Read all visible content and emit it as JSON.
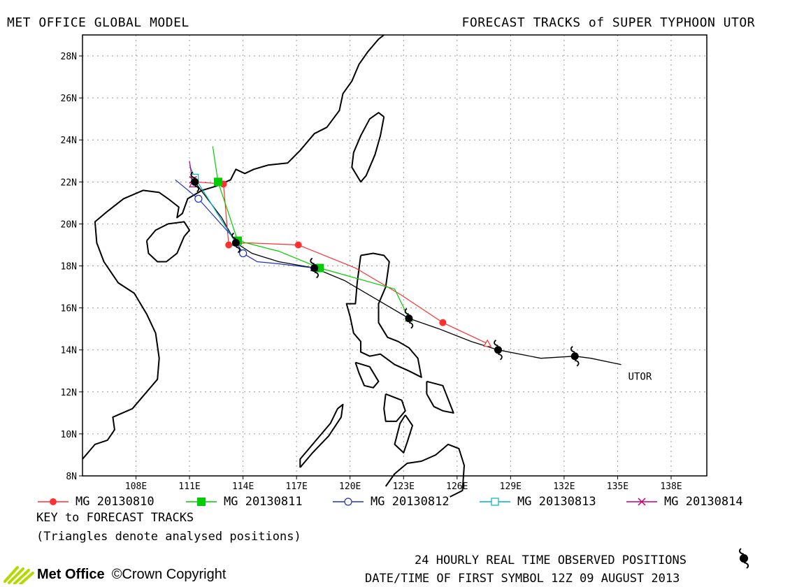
{
  "header": {
    "left_title": "MET OFFICE GLOBAL MODEL",
    "right_title": "FORECAST TRACKS of SUPER TYPHOON UTOR"
  },
  "map": {
    "lat_range": [
      8,
      29
    ],
    "lon_range": [
      105,
      140
    ],
    "lat_ticks": [
      "8N",
      "10N",
      "12N",
      "14N",
      "16N",
      "18N",
      "20N",
      "22N",
      "24N",
      "26N",
      "28N"
    ],
    "lon_ticks": [
      "108E",
      "111E",
      "114E",
      "117E",
      "120E",
      "123E",
      "126E",
      "129E",
      "132E",
      "135E",
      "138E"
    ],
    "storm_label": "UTOR",
    "colors": {
      "coast": "#000000",
      "grid": "#999999",
      "observed": "#000000"
    }
  },
  "observed_track": {
    "line": [
      [
        135.2,
        13.3
      ],
      [
        133.5,
        13.6
      ],
      [
        132.6,
        13.7
      ],
      [
        130.7,
        13.6
      ],
      [
        128.3,
        14.0
      ],
      [
        126.8,
        14.4
      ],
      [
        125.0,
        15.0
      ],
      [
        123.3,
        15.5
      ],
      [
        121.5,
        16.4
      ],
      [
        119.7,
        17.3
      ],
      [
        118.0,
        17.9
      ],
      [
        116.0,
        18.2
      ],
      [
        114.5,
        18.6
      ],
      [
        113.6,
        19.1
      ],
      [
        112.8,
        20.3
      ],
      [
        112.0,
        21.2
      ],
      [
        111.3,
        22.0
      ]
    ],
    "symbols": [
      [
        132.6,
        13.7
      ],
      [
        128.3,
        14.0
      ],
      [
        123.3,
        15.5
      ],
      [
        118.0,
        17.9
      ],
      [
        113.6,
        19.1
      ],
      [
        111.3,
        22.0
      ]
    ]
  },
  "forecast_tracks": [
    {
      "name": "MG 20130810",
      "color": "#ff3030",
      "marker": "circle-filled",
      "points": [
        [
          127.7,
          14.3
        ],
        [
          125.2,
          15.3
        ],
        [
          122.9,
          16.6
        ],
        [
          120.3,
          17.9
        ],
        [
          117.1,
          19.0
        ],
        [
          114.2,
          19.1
        ],
        [
          113.2,
          19.0
        ],
        [
          112.9,
          21.9
        ],
        [
          111.3,
          22.0
        ]
      ],
      "markers": [
        [
          125.2,
          15.3
        ],
        [
          117.1,
          19.0
        ],
        [
          113.2,
          19.0
        ],
        [
          112.9,
          21.9
        ]
      ],
      "analysed": [
        127.7,
        14.3
      ]
    },
    {
      "name": "MG 20130811",
      "color": "#00cc00",
      "marker": "square-filled",
      "points": [
        [
          123.3,
          15.5
        ],
        [
          122.5,
          16.9
        ],
        [
          118.3,
          17.9
        ],
        [
          116.0,
          18.7
        ],
        [
          113.7,
          19.2
        ],
        [
          112.6,
          22.0
        ],
        [
          112.3,
          23.7
        ]
      ],
      "markers": [
        [
          118.3,
          17.9
        ],
        [
          113.7,
          19.2
        ],
        [
          112.6,
          22.0
        ]
      ],
      "analysed": [
        123.3,
        15.5
      ]
    },
    {
      "name": "MG 20130812",
      "color": "#2030c0",
      "marker": "circle-open",
      "points": [
        [
          118.0,
          17.9
        ],
        [
          116.0,
          18.1
        ],
        [
          114.8,
          18.2
        ],
        [
          114.0,
          18.6
        ],
        [
          113.5,
          19.3
        ],
        [
          111.5,
          21.2
        ],
        [
          110.2,
          22.1
        ]
      ],
      "markers": [
        [
          114.0,
          18.6
        ],
        [
          111.5,
          21.2
        ]
      ],
      "analysed": [
        118.0,
        17.9
      ]
    },
    {
      "name": "MG 20130813",
      "color": "#00b0c0",
      "marker": "square-open",
      "points": [
        [
          113.6,
          19.1
        ],
        [
          111.3,
          22.2
        ],
        [
          111.0,
          22.8
        ]
      ],
      "markers": [
        [
          111.3,
          22.2
        ]
      ],
      "analysed": [
        113.6,
        19.1
      ]
    },
    {
      "name": "MG 20130814",
      "color": "#c0007a",
      "marker": "cross",
      "points": [
        [
          111.2,
          21.9
        ],
        [
          111.1,
          22.4
        ],
        [
          111.0,
          23.0
        ]
      ],
      "markers": [
        [
          111.2,
          22.1
        ]
      ],
      "analysed": [
        111.2,
        21.9
      ]
    }
  ],
  "legend": {
    "key_title": "KEY to FORECAST TRACKS",
    "key_note": "(Triangles denote analysed positions)",
    "observed_note": "24 HOURLY REAL TIME OBSERVED POSITIONS",
    "first_symbol": "DATE/TIME OF FIRST SYMBOL 12Z 09 AUGUST 2013"
  },
  "footer": {
    "brand": "Met Office",
    "copyright": "©Crown Copyright",
    "brand_color": "#b5d800"
  }
}
